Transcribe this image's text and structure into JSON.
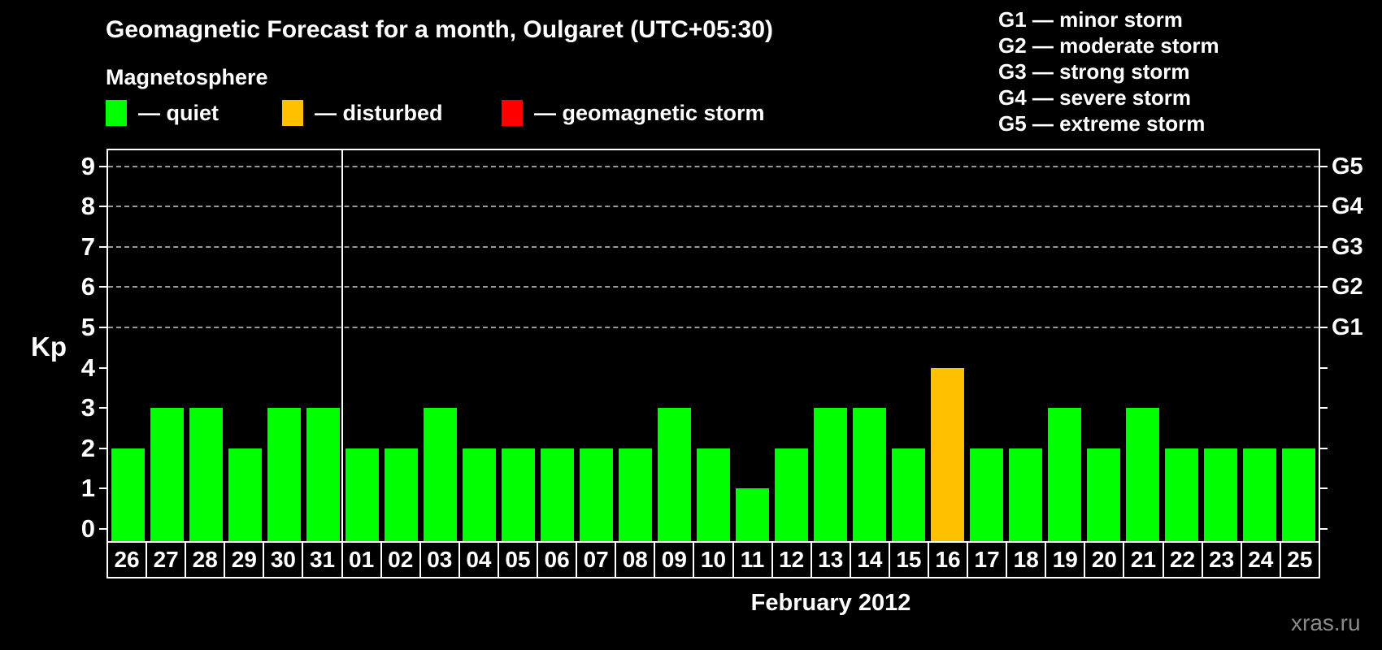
{
  "title": "Geomagnetic Forecast for a month, Oulgaret (UTC+05:30)",
  "legend": {
    "title": "Magnetosphere",
    "items": [
      {
        "status": "quiet",
        "color": "#00ff00",
        "label": "— quiet"
      },
      {
        "status": "disturbed",
        "color": "#ffc000",
        "label": "— disturbed"
      },
      {
        "status": "storm",
        "color": "#ff0000",
        "label": "— geomagnetic storm"
      }
    ]
  },
  "g_legend": [
    "G1 — minor storm",
    "G2 — moderate storm",
    "G3 — strong storm",
    "G4 — severe storm",
    "G5 — extreme storm"
  ],
  "y_axis": {
    "label": "Kp",
    "ticks": [
      0,
      1,
      2,
      3,
      4,
      5,
      6,
      7,
      8,
      9
    ]
  },
  "right_axis": {
    "labels": [
      {
        "text": "G1",
        "kp": 5
      },
      {
        "text": "G2",
        "kp": 6
      },
      {
        "text": "G3",
        "kp": 7
      },
      {
        "text": "G4",
        "kp": 8
      },
      {
        "text": "G5",
        "kp": 9
      }
    ]
  },
  "x_axis": {
    "month_label": "February 2012"
  },
  "watermark": "xras.ru",
  "colors": {
    "background": "#000000",
    "axis": "#ffffff",
    "grid": "#9a9a9a",
    "quiet": "#00ff00",
    "disturbed": "#ffc000",
    "storm": "#ff0000",
    "watermark": "#8a8a8a"
  },
  "chart_data": {
    "type": "bar",
    "title": "Geomagnetic Forecast for a month, Oulgaret (UTC+05:30)",
    "xlabel": "February 2012",
    "ylabel": "Kp",
    "ylim": [
      0,
      9
    ],
    "gridlines_at": [
      5,
      6,
      7,
      8,
      9
    ],
    "legend_position": "top",
    "month_boundary_after_index": 5,
    "categories": [
      "26",
      "27",
      "28",
      "29",
      "30",
      "31",
      "01",
      "02",
      "03",
      "04",
      "05",
      "06",
      "07",
      "08",
      "09",
      "10",
      "11",
      "12",
      "13",
      "14",
      "15",
      "16",
      "17",
      "18",
      "19",
      "20",
      "21",
      "22",
      "23",
      "24",
      "25"
    ],
    "values": [
      2,
      3,
      3,
      2,
      3,
      3,
      2,
      2,
      3,
      2,
      2,
      2,
      2,
      2,
      3,
      2,
      1,
      2,
      3,
      3,
      2,
      4,
      2,
      2,
      3,
      2,
      3,
      2,
      2,
      2,
      2
    ],
    "statuses": [
      "quiet",
      "quiet",
      "quiet",
      "quiet",
      "quiet",
      "quiet",
      "quiet",
      "quiet",
      "quiet",
      "quiet",
      "quiet",
      "quiet",
      "quiet",
      "quiet",
      "quiet",
      "quiet",
      "quiet",
      "quiet",
      "quiet",
      "quiet",
      "quiet",
      "disturbed",
      "quiet",
      "quiet",
      "quiet",
      "quiet",
      "quiet",
      "quiet",
      "quiet",
      "quiet",
      "quiet"
    ],
    "series_colors": {
      "quiet": "#00ff00",
      "disturbed": "#ffc000",
      "storm": "#ff0000"
    }
  }
}
